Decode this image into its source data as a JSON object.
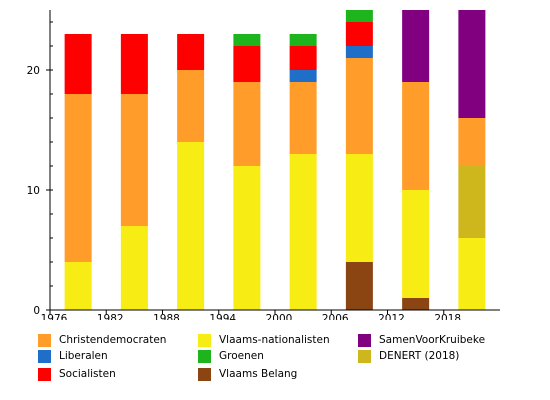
{
  "chart_data": {
    "type": "bar",
    "stacked": true,
    "title": "",
    "xlabel": "",
    "ylabel": "",
    "categories": [
      "1976",
      "1982",
      "1988",
      "1994",
      "2000",
      "2006",
      "2012",
      "2018"
    ],
    "ylim": [
      0,
      25
    ],
    "yticks": [
      0,
      10,
      20
    ],
    "grid": false,
    "legend_placement": "bottom",
    "series": [
      {
        "name": "Vlaams Belang",
        "color": "#8B4513",
        "values": [
          0,
          0,
          0,
          0,
          0,
          4,
          1,
          0
        ]
      },
      {
        "name": "Vlaams-nationalisten",
        "color": "#F7EC13",
        "values": [
          4,
          7,
          14,
          12,
          13,
          9,
          9,
          6
        ]
      },
      {
        "name": "DENERT (2018)",
        "color": "#CEB71D",
        "values": [
          0,
          0,
          0,
          0,
          0,
          0,
          0,
          6
        ]
      },
      {
        "name": "Christendemocraten",
        "color": "#FF9C2A",
        "values": [
          14,
          11,
          6,
          7,
          6,
          8,
          9,
          4
        ]
      },
      {
        "name": "Liberalen",
        "color": "#1F6FC9",
        "values": [
          0,
          0,
          0,
          0,
          1,
          1,
          0,
          0
        ]
      },
      {
        "name": "Socialisten",
        "color": "#FF0000",
        "values": [
          5,
          5,
          3,
          3,
          2,
          2,
          0,
          0
        ]
      },
      {
        "name": "Groenen",
        "color": "#1DB41D",
        "values": [
          0,
          0,
          0,
          1,
          1,
          1,
          0,
          0
        ]
      },
      {
        "name": "SamenVoorKruibeke",
        "color": "#800080",
        "values": [
          0,
          0,
          0,
          0,
          0,
          0,
          6,
          9
        ]
      }
    ]
  },
  "legend": [
    {
      "label": "Christendemocraten",
      "color": "#FF9C2A"
    },
    {
      "label": "Vlaams-nationalisten",
      "color": "#F7EC13"
    },
    {
      "label": "SamenVoorKruibeke",
      "color": "#800080"
    },
    {
      "label": "Liberalen",
      "color": "#1F6FC9"
    },
    {
      "label": "Groenen",
      "color": "#1DB41D"
    },
    {
      "label": "DENERT (2018)",
      "color": "#CEB71D"
    },
    {
      "label": "Socialisten",
      "color": "#FF0000"
    },
    {
      "label": "Vlaams Belang",
      "color": "#8B4513"
    }
  ]
}
